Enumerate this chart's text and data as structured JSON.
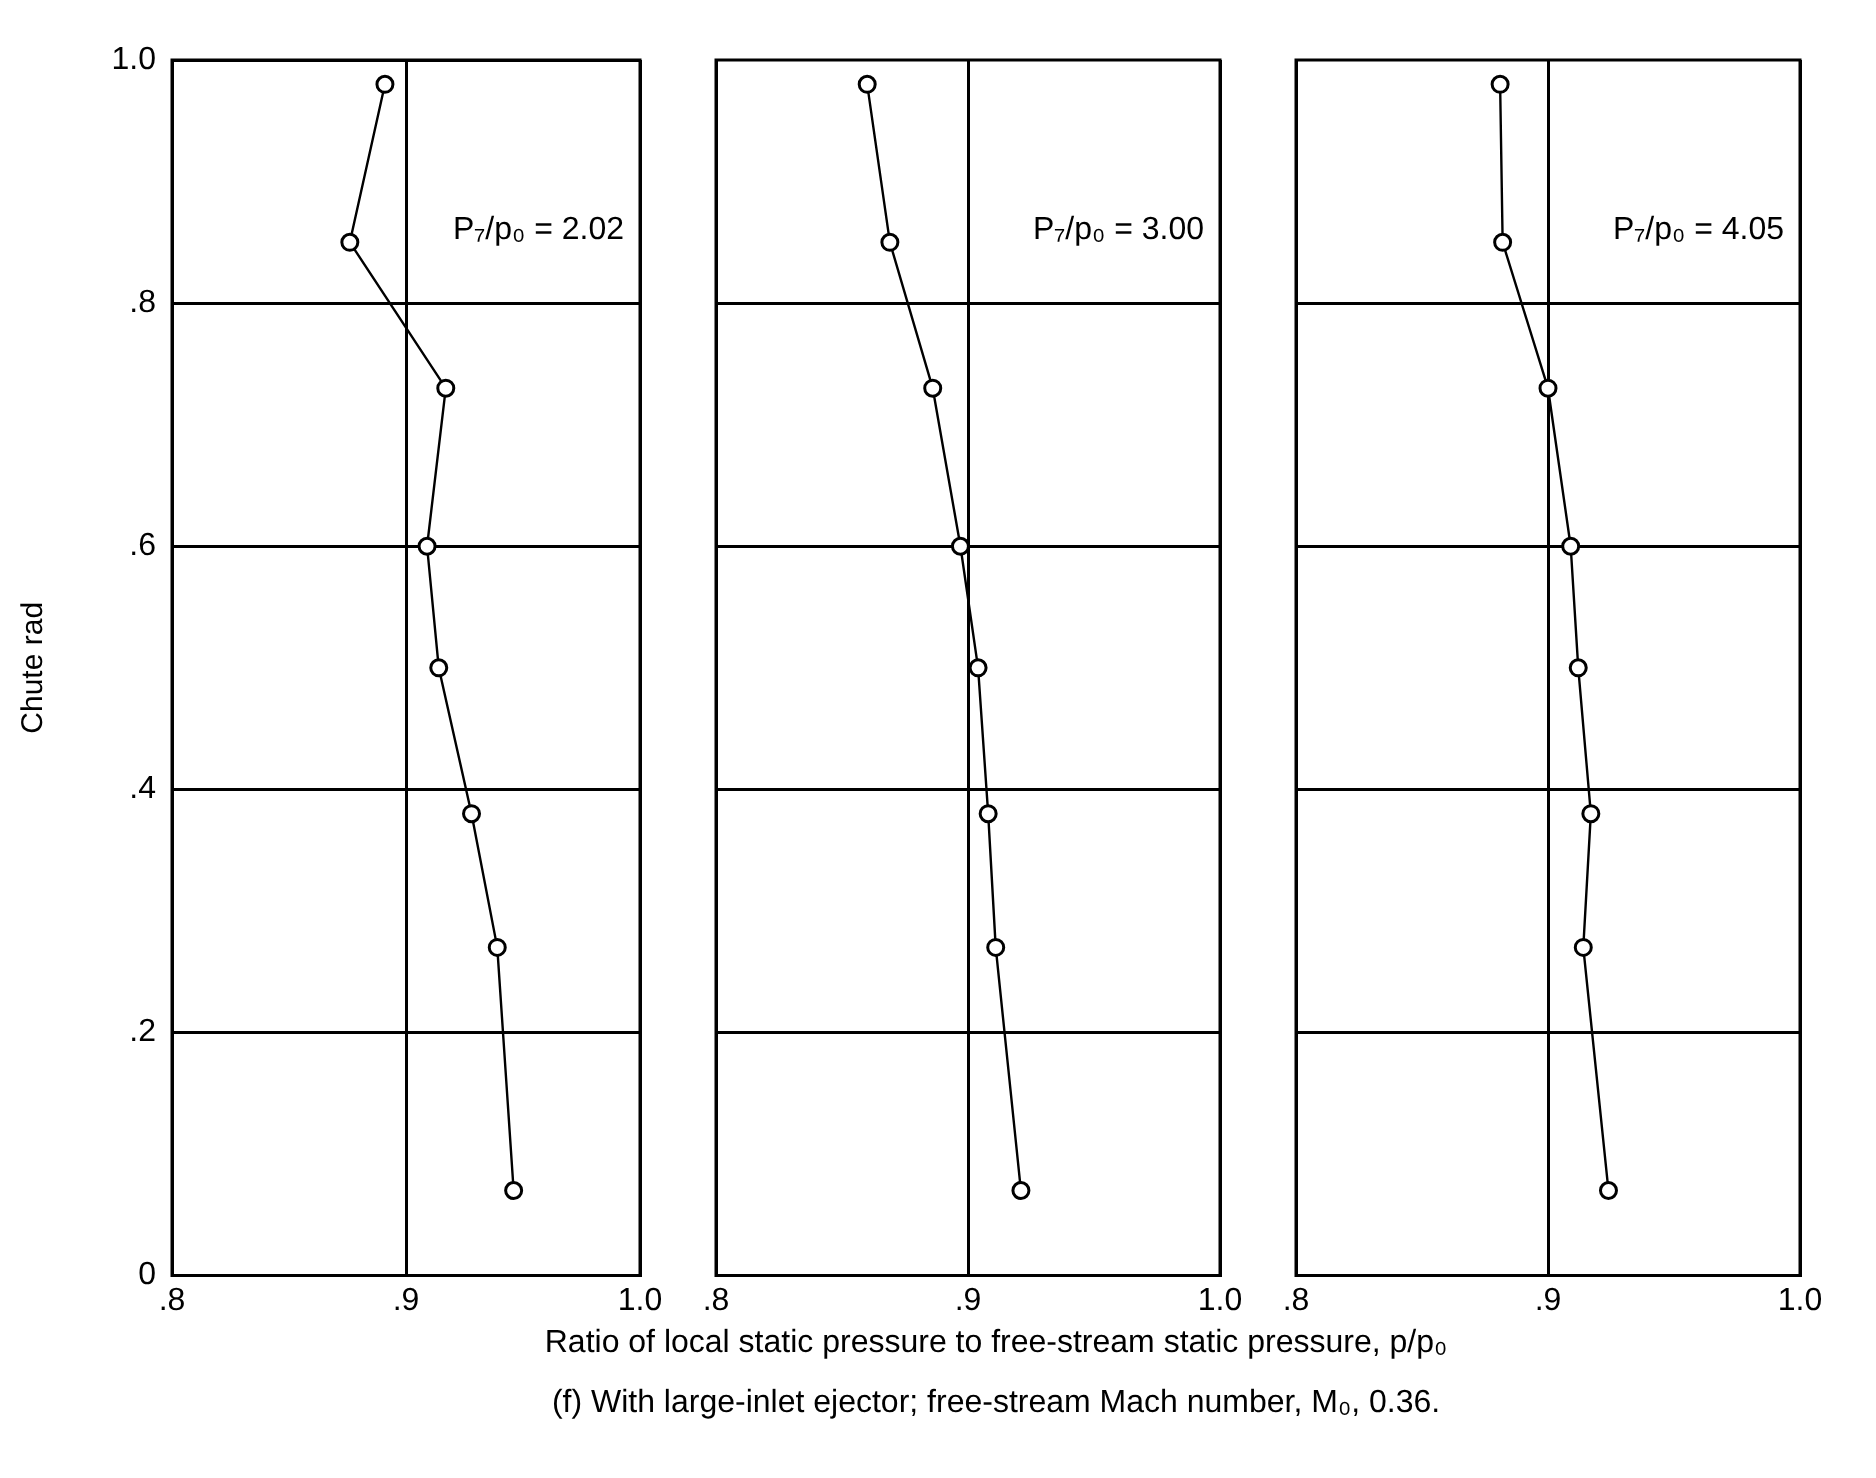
{
  "chart_data": [
    {
      "type": "line",
      "ylabel": "Chute rad",
      "annotations": [
        "P₇/p₀ = 2.02"
      ],
      "x": [
        0.891,
        0.876,
        0.917,
        0.909,
        0.914,
        0.928,
        0.939,
        0.946
      ],
      "values": [
        0.98,
        0.85,
        0.73,
        0.6,
        0.5,
        0.38,
        0.27,
        0.07
      ],
      "color": "#000000",
      "marker": "circle",
      "line_style": "solid",
      "grid": true,
      "legend": false,
      "xlim": [
        0.8,
        1.0
      ],
      "xticks": [
        {
          "value": 0.8,
          "label": ".8"
        },
        {
          "value": 0.9,
          "label": ".9"
        },
        {
          "value": 1.0,
          "label": "1.0"
        }
      ],
      "ylim": [
        0,
        1.0
      ],
      "yticks": [
        0,
        {
          "value": 0.2,
          "label": ".2"
        },
        {
          "value": 0.4,
          "label": ".4"
        },
        {
          "value": 0.6,
          "label": ".6"
        },
        {
          "value": 0.8,
          "label": ".8"
        },
        {
          "value": 1.0,
          "label": "1.0"
        }
      ]
    },
    {
      "type": "line",
      "xlabel": "Ratio of local static pressure to free-stream static pressure, p/p₀",
      "annotations": [
        "P₇/p₀ = 3.00",
        "(f) With large-inlet ejector; free-stream Mach number, M₀, 0.36."
      ],
      "x": [
        0.86,
        0.869,
        0.886,
        0.897,
        0.904,
        0.908,
        0.911,
        0.921
      ],
      "values": [
        0.98,
        0.85,
        0.73,
        0.6,
        0.5,
        0.38,
        0.27,
        0.07
      ],
      "color": "#000000",
      "marker": "circle",
      "line_style": "solid",
      "grid": true,
      "legend": false,
      "tick_labels": "x",
      "xlim": [
        0.8,
        1.0
      ],
      "xticks": [
        {
          "value": 0.8,
          "label": ".8"
        },
        {
          "value": 0.9,
          "label": ".9"
        },
        {
          "value": 1.0,
          "label": "1.0"
        }
      ],
      "ylim": [
        0,
        1.0
      ],
      "yticks": [
        0.2,
        0.4,
        0.6,
        0.8
      ]
    },
    {
      "type": "line",
      "annotations": [
        "P₇/p₀ = 4.05"
      ],
      "x": [
        0.881,
        0.882,
        0.9,
        0.909,
        0.912,
        0.917,
        0.914,
        0.924
      ],
      "values": [
        0.98,
        0.85,
        0.73,
        0.6,
        0.5,
        0.38,
        0.27,
        0.07
      ],
      "color": "#000000",
      "marker": "circle",
      "line_style": "solid",
      "grid": true,
      "legend": false,
      "tick_labels": "x",
      "xlim": [
        0.8,
        1.0
      ],
      "xticks": [
        {
          "value": 0.8,
          "label": ".8"
        },
        {
          "value": 0.9,
          "label": ".9"
        },
        {
          "value": 1.0,
          "label": "1.0"
        }
      ],
      "ylim": [
        0,
        1.0
      ],
      "yticks": [
        0.2,
        0.4,
        0.6,
        0.8
      ]
    }
  ]
}
